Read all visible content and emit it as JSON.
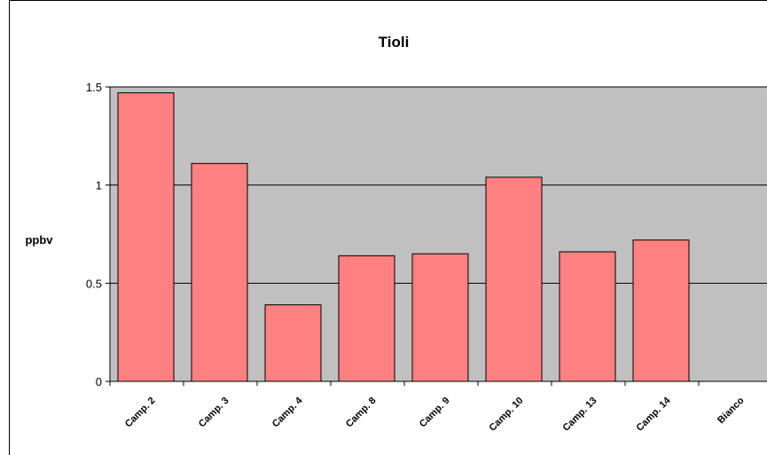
{
  "chart_data": {
    "type": "bar",
    "title": "Tioli",
    "ylabel": "ppbv",
    "xlabel": "",
    "categories": [
      "Camp. 2",
      "Camp. 3",
      "Camp. 4",
      "Camp. 8",
      "Camp. 9",
      "Camp. 10",
      "Camp. 13",
      "Camp. 14",
      "Bianco"
    ],
    "values": [
      1.47,
      1.11,
      0.39,
      0.64,
      0.65,
      1.04,
      0.66,
      0.72,
      0
    ],
    "ylim": [
      0,
      1.5
    ],
    "yticks": [
      "0",
      "0.5",
      "1",
      "1.5"
    ],
    "grid": true,
    "colors": {
      "bar_fill": "#ff8080",
      "plot_background": "#c0c0c0",
      "gridline": "#000000"
    }
  }
}
